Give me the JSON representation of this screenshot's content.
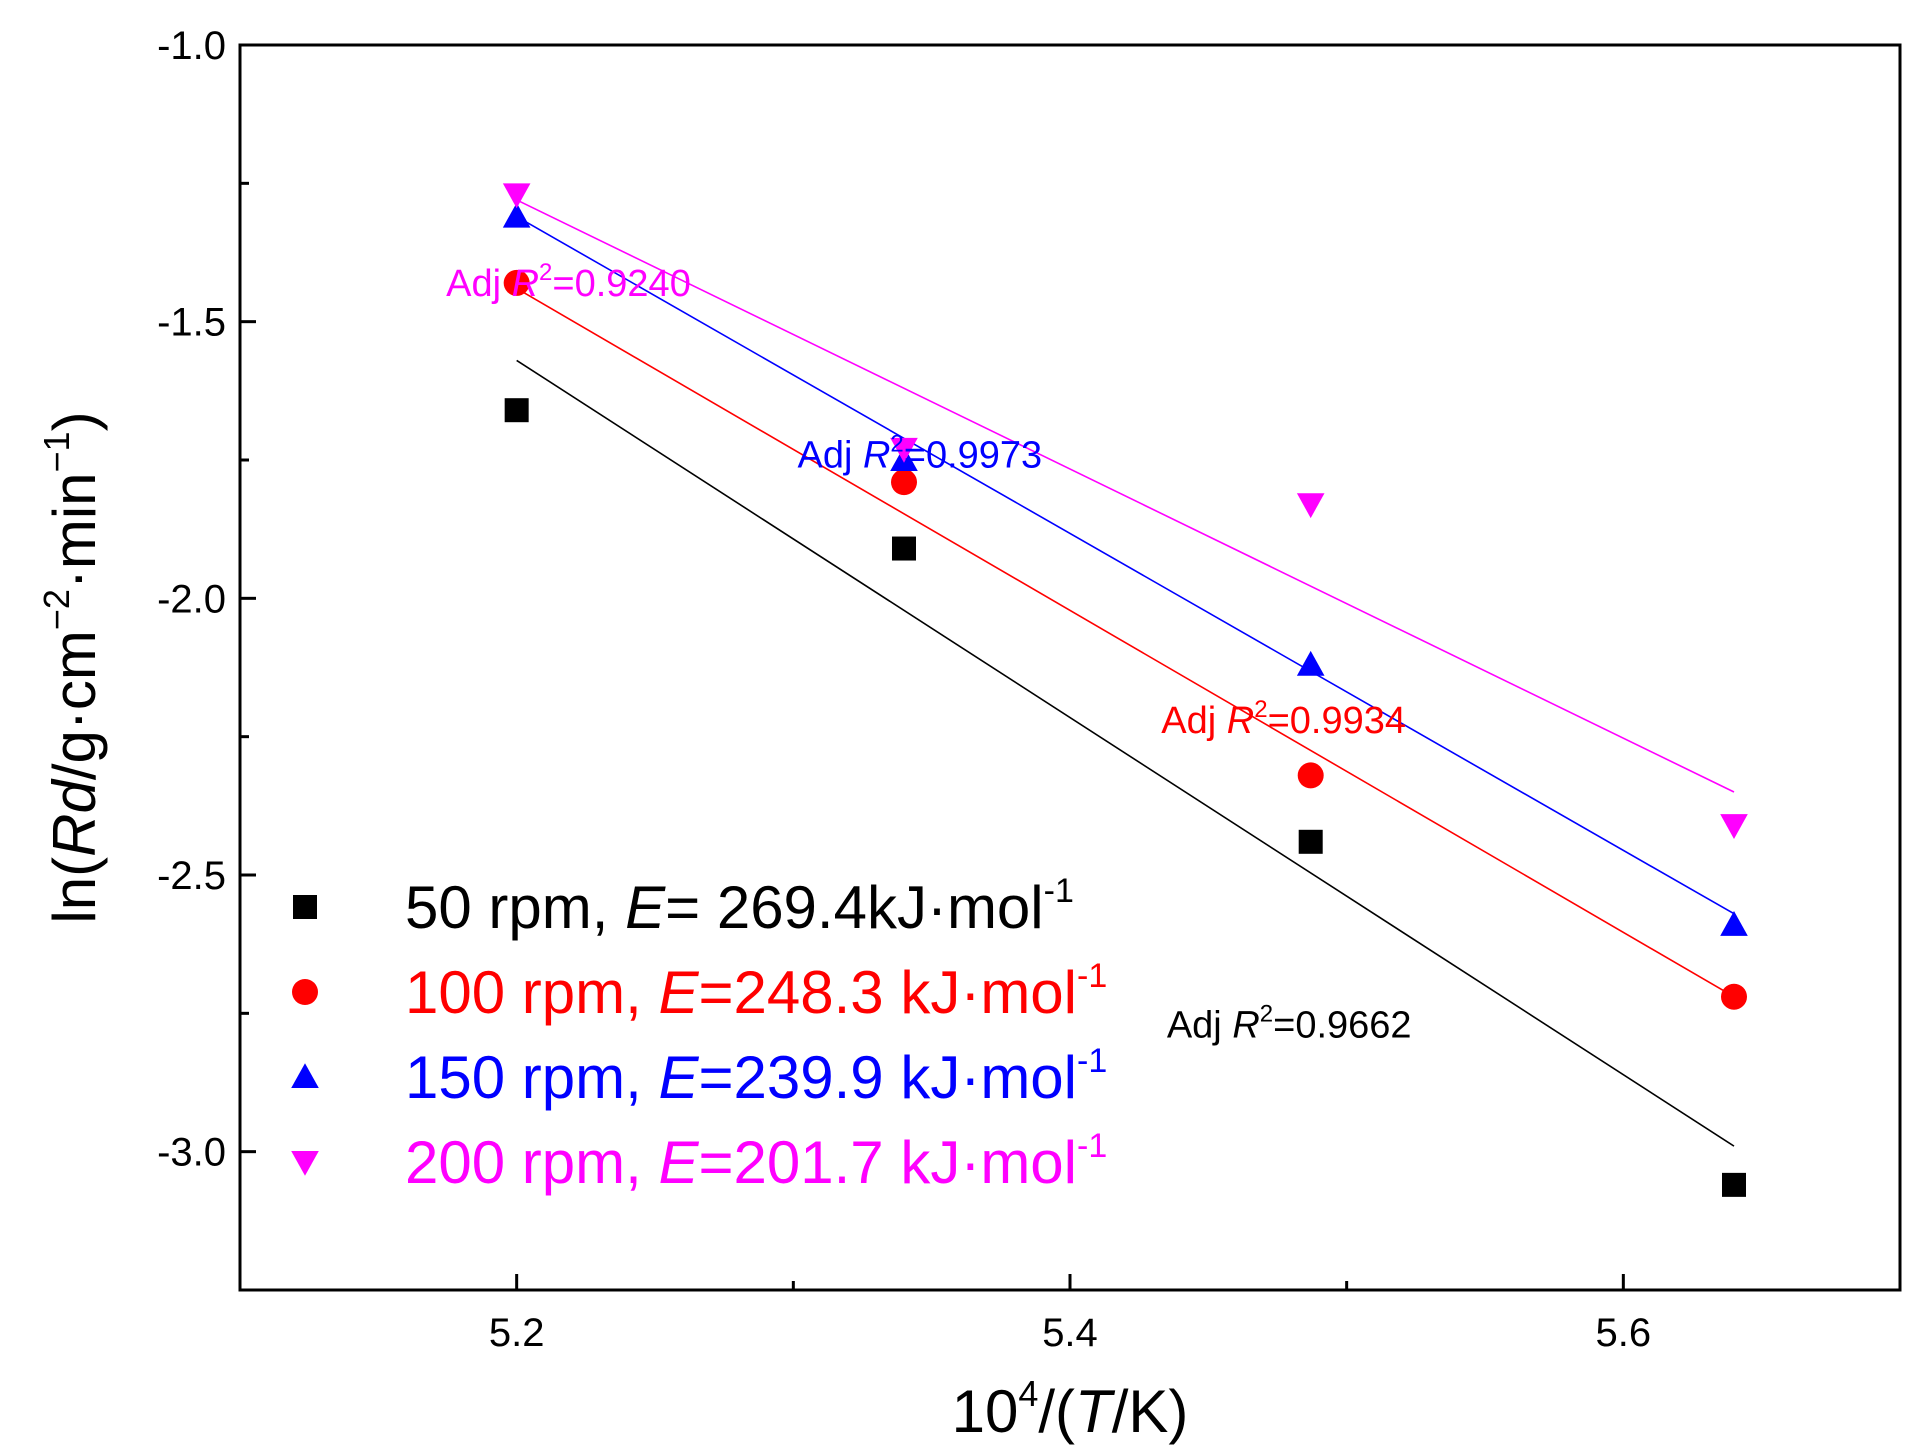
{
  "chart_data": {
    "type": "scatter",
    "xlabel": {
      "base": "10",
      "sup": "4",
      "rest_open": "/(",
      "italic": "T",
      "rest_close": "/K)"
    },
    "ylabel": {
      "pre": "ln(",
      "italic": "Rd",
      "mid": "/g·cm",
      "sup1": "−2",
      "mid2": "·min",
      "sup2": "−1",
      "post": ")"
    },
    "xlim": [
      5.1,
      5.7
    ],
    "ylim": [
      -3.25,
      -1.0
    ],
    "x_ticks": [
      "5.2",
      "5.4",
      "5.6"
    ],
    "y_ticks": [
      "-1.0",
      "-1.5",
      "-2.0",
      "-2.5",
      "-3.0"
    ],
    "x_tick_values": [
      5.2,
      5.4,
      5.6
    ],
    "x_minor_tick_values": [
      5.3,
      5.5
    ],
    "y_tick_values": [
      -1.0,
      -1.5,
      -2.0,
      -2.5,
      -3.0
    ],
    "y_minor_tick_values": [
      -1.25,
      -1.75,
      -2.25,
      -2.75
    ],
    "x": [
      5.2,
      5.34,
      5.487,
      5.64
    ],
    "series": [
      {
        "key": "s50",
        "color": "#000000",
        "marker": "square",
        "values": [
          -1.66,
          -1.91,
          -2.44,
          -3.06
        ],
        "fit": [
          [
            5.2,
            -1.57
          ],
          [
            5.64,
            -2.99
          ]
        ],
        "legend": {
          "pre": "50 rpm, ",
          "italic": "E",
          "post": "= 269.4kJ·mol",
          "sup": "-1"
        },
        "r2": {
          "pre": "Adj ",
          "italic": "R",
          "sup": "2",
          "post": "=0.9662",
          "x": 5.435,
          "y": -2.77
        }
      },
      {
        "key": "s100",
        "color": "#ff0000",
        "marker": "circle",
        "values": [
          -1.43,
          -1.79,
          -2.32,
          -2.72
        ],
        "fit": [
          [
            5.2,
            -1.44
          ],
          [
            5.64,
            -2.72
          ]
        ],
        "legend": {
          "pre": "100 rpm, ",
          "italic": "E",
          "post": "=248.3 kJ·mol",
          "sup": "-1"
        },
        "r2": {
          "pre": "Adj ",
          "italic": "R",
          "sup": "2",
          "post": "=0.9934",
          "x": 5.433,
          "y": -2.22
        }
      },
      {
        "key": "s150",
        "color": "#0000ff",
        "marker": "triangle-up",
        "values": [
          -1.31,
          -1.75,
          -2.12,
          -2.59
        ],
        "fit": [
          [
            5.2,
            -1.31
          ],
          [
            5.64,
            -2.57
          ]
        ],
        "legend": {
          "pre": "150 rpm, ",
          "italic": "E",
          "post": "=239.9 kJ·mol",
          "sup": "-1"
        },
        "r2": {
          "pre": "Adj ",
          "italic": "R",
          "sup": "2",
          "post": "=0.9973",
          "x": 5.3015,
          "y": -1.74
        }
      },
      {
        "key": "s200",
        "color": "#ff00ff",
        "marker": "triangle-down",
        "values": [
          -1.27,
          -1.73,
          -1.83,
          -2.41
        ],
        "fit": [
          [
            5.2,
            -1.28
          ],
          [
            5.64,
            -2.35
          ]
        ],
        "legend": {
          "pre": "200 rpm, ",
          "italic": "E",
          "post": "=201.7 kJ·mol",
          "sup": "-1"
        },
        "r2": {
          "pre": "Adj ",
          "italic": "R",
          "sup": "2",
          "post": "=0.9240",
          "x": 5.1745,
          "y": -1.43
        }
      }
    ],
    "legend_placement": "bottom-left",
    "grid": false
  }
}
